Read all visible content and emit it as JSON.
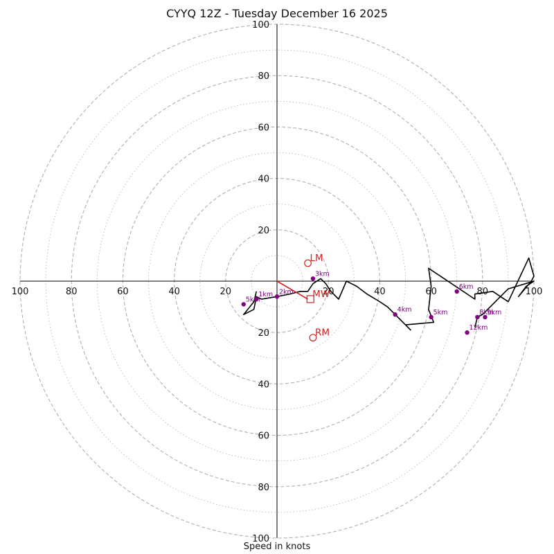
{
  "chart_data": {
    "type": "hodograph",
    "title": "CYYQ 12Z - Tuesday December 16 2025",
    "xlabel": "Speed in knots",
    "rings": [
      10,
      20,
      30,
      40,
      50,
      60,
      70,
      80,
      90,
      100
    ],
    "labeled_rings": [
      20,
      40,
      60,
      80,
      100
    ],
    "tick_labels": [
      "100",
      "80",
      "60",
      "40",
      "20",
      "20",
      "40",
      "60",
      "80",
      "100"
    ],
    "xlim": [
      -100,
      100
    ],
    "ylim": [
      -100,
      100
    ],
    "colors": {
      "hodo_line": "#000000",
      "height_points": "#800080",
      "storm_motion": "#d02020",
      "grid": "#b0b0b0"
    },
    "hodograph_uv": [
      [
        -8,
        -4
      ],
      [
        -9,
        -8
      ],
      [
        -13,
        -13
      ],
      [
        -9,
        -11
      ],
      [
        -8,
        -6
      ],
      [
        -6,
        -7
      ],
      [
        0,
        -6
      ],
      [
        5,
        -5
      ],
      [
        9,
        -4
      ],
      [
        12,
        -4
      ],
      [
        14,
        -1
      ],
      [
        17,
        1
      ],
      [
        19,
        -1
      ],
      [
        21,
        -4
      ],
      [
        24,
        -7
      ],
      [
        27,
        0
      ],
      [
        31,
        -2
      ],
      [
        35,
        -5
      ],
      [
        40,
        -8
      ],
      [
        43,
        -10
      ],
      [
        46,
        -13
      ],
      [
        51,
        -18
      ],
      [
        52,
        -19
      ],
      [
        50,
        -17
      ],
      [
        61,
        -16
      ],
      [
        59,
        -11
      ],
      [
        60,
        -2
      ],
      [
        59,
        5
      ],
      [
        68,
        -1
      ],
      [
        77,
        -7
      ],
      [
        77,
        -5
      ],
      [
        84,
        -4
      ],
      [
        90,
        -8
      ],
      [
        98,
        9
      ],
      [
        100,
        2
      ],
      [
        99,
        0
      ],
      [
        94,
        -6
      ],
      [
        97,
        -2
      ],
      [
        100,
        0
      ],
      [
        90,
        -3
      ],
      [
        80,
        -13
      ],
      [
        78,
        -14
      ],
      [
        77,
        -18
      ]
    ],
    "height_points": [
      {
        "label": "5km",
        "u": -13,
        "v": -9
      },
      {
        "label": "1km",
        "u": -8,
        "v": -7
      },
      {
        "label": "2km",
        "u": 0,
        "v": -6
      },
      {
        "label": "3km",
        "u": 14,
        "v": 1
      },
      {
        "label": "4km",
        "u": 46,
        "v": -13
      },
      {
        "label": "5km",
        "u": 60,
        "v": -14
      },
      {
        "label": "6km",
        "u": 70,
        "v": -4
      },
      {
        "label": "8km",
        "u": 78,
        "v": -14
      },
      {
        "label": "9km",
        "u": 81,
        "v": -14
      },
      {
        "label": "12km",
        "u": 74,
        "v": -20
      }
    ],
    "storm_motion": [
      {
        "label": "LM",
        "u": 12,
        "v": 7,
        "marker": "circle"
      },
      {
        "label": "MW",
        "u": 13,
        "v": -7,
        "marker": "square"
      },
      {
        "label": "RM",
        "u": 14,
        "v": -22,
        "marker": "circle"
      }
    ],
    "mean_wind_vector": {
      "u": 12,
      "v": -7
    }
  }
}
